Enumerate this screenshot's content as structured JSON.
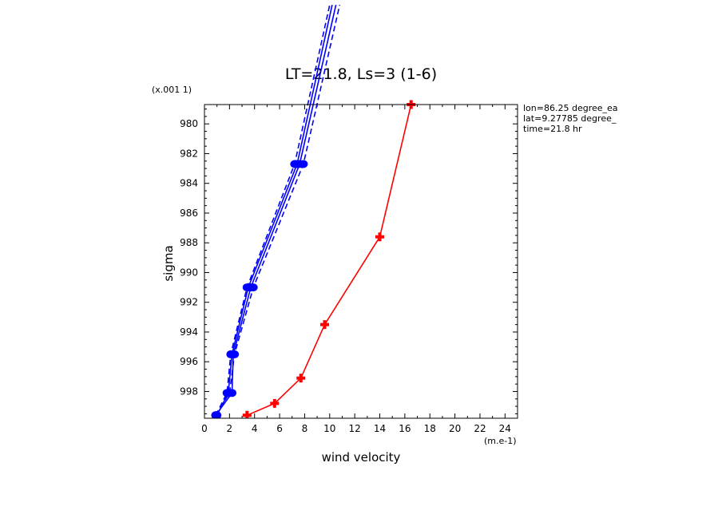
{
  "chart_data": {
    "type": "line",
    "title": "LT=21.8, Ls=3 (1-6)",
    "xlabel": "wind velocity",
    "ylabel": "sigma",
    "x_unit": "(m.e-1)",
    "y_unit": "(x.001 1)",
    "xlim": [
      0,
      25
    ],
    "ylim": [
      999.8,
      978.7
    ],
    "y_inverted": true,
    "x_ticks": [
      0,
      2,
      4,
      6,
      8,
      10,
      12,
      14,
      16,
      18,
      20,
      22,
      24
    ],
    "y_ticks": [
      980,
      982,
      984,
      986,
      988,
      990,
      992,
      994,
      996,
      998
    ],
    "grid": false,
    "annotations": [
      "lon=86.25 degree_ea",
      "lat=9.27785 degree_",
      "time=21.8 hr"
    ],
    "series": [
      {
        "color": "#0000ff",
        "style": "solid",
        "marker": "dot",
        "points": [
          [
            0.9,
            999.6
          ],
          [
            2.2,
            998.1
          ],
          [
            2.3,
            995.5
          ],
          [
            3.7,
            991.0
          ],
          [
            7.6,
            982.7
          ],
          [
            10.5,
            972.0
          ]
        ]
      },
      {
        "color": "#0000ff",
        "style": "dashed",
        "marker": "dot",
        "points": [
          [
            0.9,
            999.6
          ],
          [
            1.8,
            998.1
          ],
          [
            2.1,
            995.5
          ],
          [
            3.4,
            991.0
          ],
          [
            7.2,
            982.7
          ],
          [
            10.0,
            972.0
          ]
        ]
      },
      {
        "color": "#0000ff",
        "style": "solid",
        "marker": "dot",
        "points": [
          [
            1.0,
            999.6
          ],
          [
            1.9,
            998.1
          ],
          [
            2.2,
            995.5
          ],
          [
            3.5,
            991.0
          ],
          [
            7.4,
            982.7
          ],
          [
            10.2,
            972.0
          ]
        ]
      },
      {
        "color": "#0000ff",
        "style": "dashed",
        "marker": "dot",
        "points": [
          [
            0.9,
            999.6
          ],
          [
            2.0,
            998.1
          ],
          [
            2.4,
            995.5
          ],
          [
            3.9,
            991.0
          ],
          [
            7.9,
            982.7
          ],
          [
            10.8,
            972.0
          ]
        ]
      },
      {
        "color": "#ff0000",
        "style": "solid",
        "marker": "cross",
        "points": [
          [
            3.4,
            999.6
          ],
          [
            5.6,
            998.8
          ],
          [
            7.7,
            997.1
          ],
          [
            9.6,
            993.5
          ],
          [
            14.0,
            987.6
          ],
          [
            16.5,
            978.7
          ]
        ]
      }
    ]
  }
}
